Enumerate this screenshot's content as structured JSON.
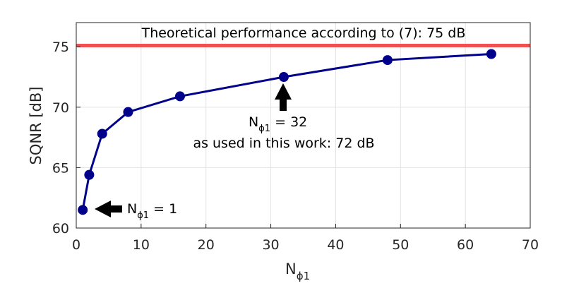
{
  "chart_data": {
    "type": "line",
    "xlabel": {
      "base": "N",
      "sub": "ϕ1"
    },
    "ylabel": "SQNR [dB]",
    "xlim": [
      0,
      70
    ],
    "ylim": [
      60,
      77
    ],
    "xticks": [
      0,
      10,
      20,
      30,
      40,
      50,
      60,
      70
    ],
    "yticks": [
      60,
      65,
      70,
      75
    ],
    "grid": true,
    "series": [
      {
        "x": [
          1,
          2,
          4,
          8,
          16,
          32,
          48,
          64
        ],
        "y": [
          61.5,
          64.4,
          67.8,
          69.6,
          70.9,
          72.5,
          73.9,
          74.4
        ],
        "color": "#00008b"
      }
    ],
    "reference_line": {
      "y": 75.1,
      "color": "#f05050",
      "label": "Theoretical performance according to (7): 75 dB"
    },
    "annotations": [
      {
        "base": "N",
        "sub": "ϕ1",
        "rest": " = 1"
      },
      {
        "base": "N",
        "sub": "ϕ1",
        "rest": " = 32",
        "line2": "as used in this work: 72 dB"
      }
    ]
  }
}
